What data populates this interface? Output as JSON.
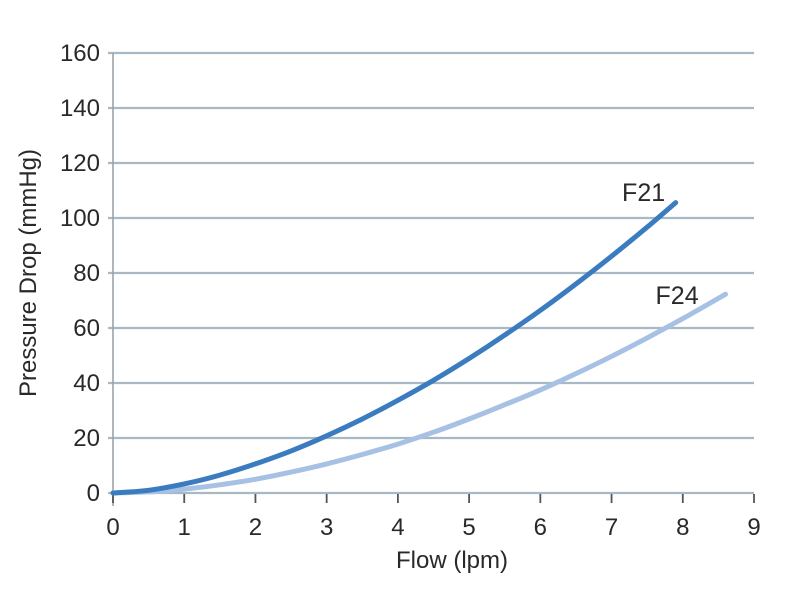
{
  "chart_data": {
    "type": "line",
    "title": "",
    "xlabel": "Flow (lpm)",
    "ylabel": "Pressure Drop (mmHg)",
    "xlim": [
      0,
      9
    ],
    "ylim": [
      0,
      160
    ],
    "x_ticks": [
      0,
      1,
      2,
      3,
      4,
      5,
      6,
      7,
      8,
      9
    ],
    "y_ticks": [
      0,
      20,
      40,
      60,
      80,
      100,
      120,
      140,
      160
    ],
    "grid": "horizontal",
    "legend_position": "inline-annotations",
    "colors": {
      "grid": "#a8b8c4",
      "axis": "#9aa3ab",
      "tick": "#50555b",
      "text": "#2a282b"
    },
    "series": [
      {
        "name": "F21",
        "color": "#3b7cc0",
        "x": [
          0,
          0.5,
          1,
          1.5,
          2,
          2.5,
          3,
          3.5,
          4,
          4.5,
          5,
          5.5,
          6,
          6.5,
          7,
          7.5,
          7.9
        ],
        "y": [
          0,
          1,
          3.3,
          6.5,
          10.6,
          15.3,
          20.8,
          26.9,
          33.7,
          41,
          48.9,
          57.4,
          66.4,
          76,
          86.1,
          96.7,
          105.6
        ],
        "label_pos": {
          "x": 7.45,
          "y": 109.5
        }
      },
      {
        "name": "F24",
        "color": "#a6c1e4",
        "x": [
          0,
          0.5,
          1,
          1.5,
          2,
          2.5,
          3,
          3.5,
          4,
          4.5,
          5,
          5.5,
          6,
          6.5,
          7,
          7.5,
          8,
          8.6
        ],
        "y": [
          0,
          0.4,
          1.4,
          3,
          5,
          7.6,
          10.6,
          14,
          17.8,
          22.1,
          26.9,
          32.1,
          37.5,
          43.4,
          49.7,
          56.4,
          63.4,
          72.3
        ],
        "label_pos": {
          "x": 7.92,
          "y": 72
        }
      }
    ]
  }
}
